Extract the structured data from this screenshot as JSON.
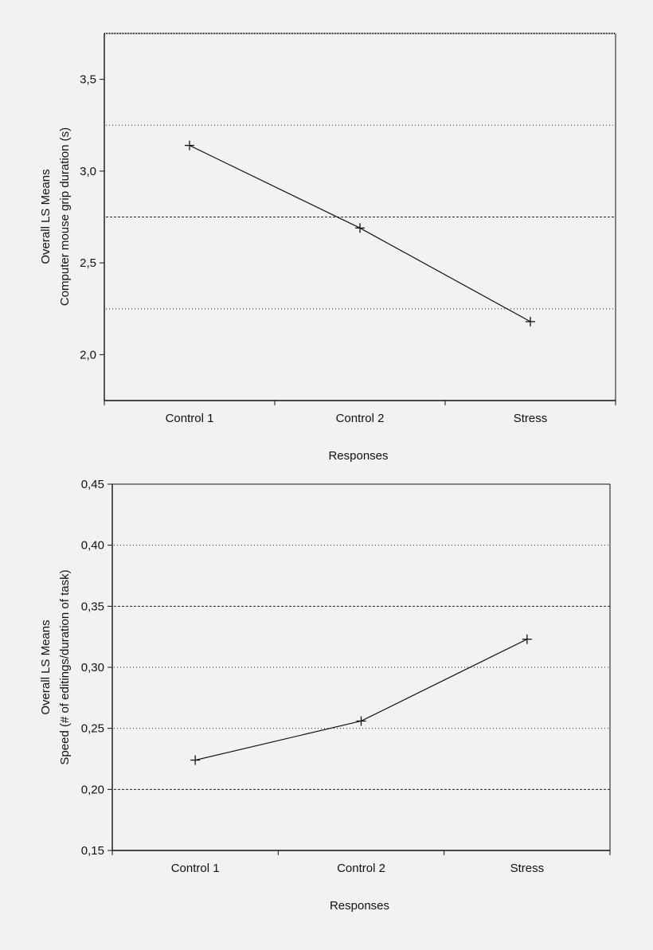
{
  "chart_data": [
    {
      "type": "line",
      "categories": [
        "Control 1",
        "Control 2",
        "Stress"
      ],
      "series": [
        {
          "values": [
            3.14,
            2.69,
            2.18
          ]
        }
      ],
      "xlabel": "Responses",
      "ylabel": [
        "Overall LS Means",
        "Computer mouse grip duration (s)"
      ],
      "ylim": [
        1.75,
        3.75
      ],
      "yticks": [
        2.0,
        2.5,
        3.0,
        3.5
      ],
      "ytick_labels": [
        "2,0",
        "2,5",
        "3,0",
        "3,5"
      ],
      "grid_lines": [
        {
          "value": 3.25,
          "style": "dotted"
        },
        {
          "value": 2.75,
          "style": "dashed"
        },
        {
          "value": 2.25,
          "style": "dotted"
        }
      ],
      "marker": "plus",
      "line_color": "#111111"
    },
    {
      "type": "line",
      "categories": [
        "Control 1",
        "Control 2",
        "Stress"
      ],
      "series": [
        {
          "values": [
            0.224,
            0.256,
            0.323
          ]
        }
      ],
      "xlabel": "Responses",
      "ylabel": [
        "Overall LS Means",
        "Speed (# of editings/duration of task)"
      ],
      "ylim": [
        0.15,
        0.45
      ],
      "yticks": [
        0.15,
        0.2,
        0.25,
        0.3,
        0.35,
        0.4,
        0.45
      ],
      "ytick_labels": [
        "0,15",
        "0,20",
        "0,25",
        "0,30",
        "0,35",
        "0,40",
        "0,45"
      ],
      "grid_lines": [
        {
          "value": 0.4,
          "style": "dotted"
        },
        {
          "value": 0.35,
          "style": "dashed"
        },
        {
          "value": 0.3,
          "style": "dotted"
        },
        {
          "value": 0.25,
          "style": "dotted"
        },
        {
          "value": 0.2,
          "style": "dashed"
        }
      ],
      "marker": "plus",
      "line_color": "#111111"
    }
  ]
}
